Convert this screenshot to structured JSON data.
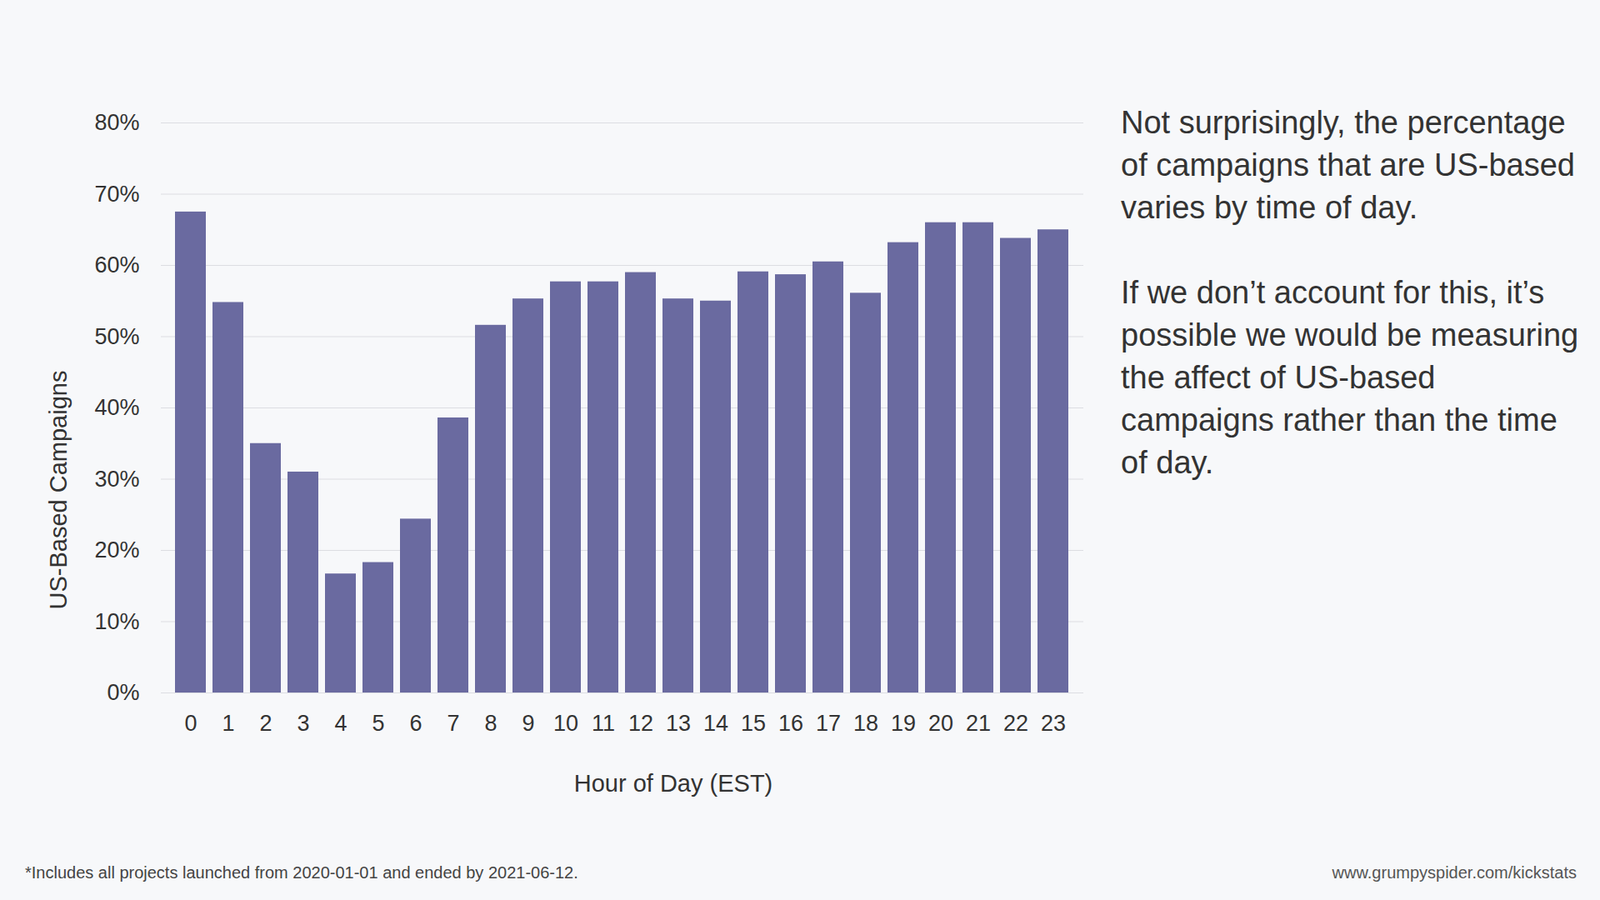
{
  "chart_data": {
    "type": "bar",
    "x_label": "Hour of Day (EST)",
    "y_label": "US-Based Campaigns",
    "categories": [
      "0",
      "1",
      "2",
      "3",
      "4",
      "5",
      "6",
      "7",
      "8",
      "9",
      "10",
      "11",
      "12",
      "13",
      "14",
      "15",
      "16",
      "17",
      "18",
      "19",
      "20",
      "21",
      "22",
      "23"
    ],
    "values": [
      67.5,
      54.8,
      35,
      31,
      16.7,
      18.3,
      24.4,
      38.6,
      51.6,
      55.3,
      57.7,
      57.7,
      59,
      55.3,
      55,
      59.1,
      58.7,
      60.5,
      56.1,
      63.2,
      66,
      66,
      63.8,
      65
    ],
    "color": "#6a6aa0",
    "ylim": [
      0,
      80
    ],
    "yticks": [
      {
        "value": 0,
        "label": "0%"
      },
      {
        "value": 10,
        "label": "10%"
      },
      {
        "value": 20,
        "label": "20%"
      },
      {
        "value": 30,
        "label": "30%"
      },
      {
        "value": 40,
        "label": "40%"
      },
      {
        "value": 50,
        "label": "50%"
      },
      {
        "value": 60,
        "label": "60%"
      },
      {
        "value": 70,
        "label": "70%"
      },
      {
        "value": 80,
        "label": "80%"
      }
    ],
    "grid": true,
    "annotations": [
      "Not surprisingly, the percentage of campaigns that are US-based varies by time of day.",
      "If we don’t account for this, it’s possible we would be measuring the affect of US-based campaigns rather than the time of day."
    ],
    "footnote": "*Includes all projects launched from 2020-01-01 and ended by 2021-06-12.",
    "source": "www.grumpyspider.com/kickstats"
  }
}
